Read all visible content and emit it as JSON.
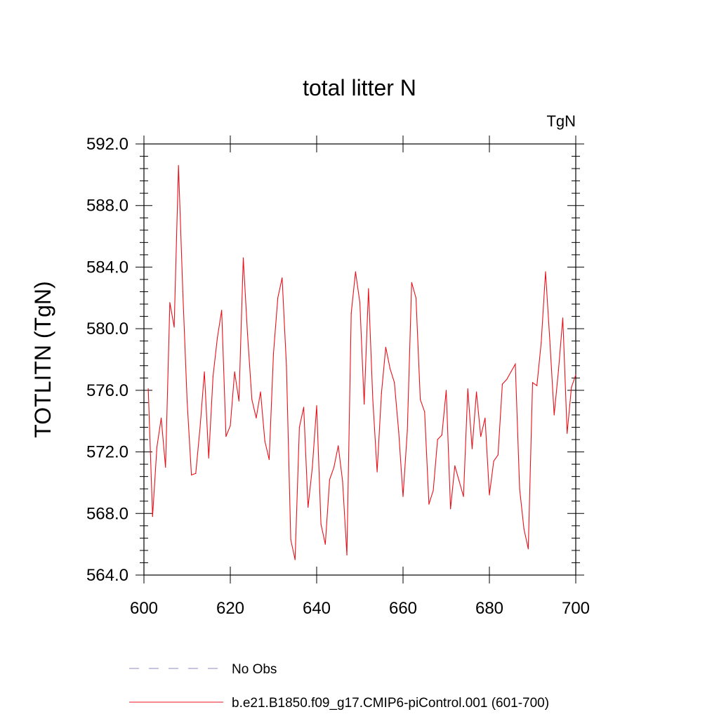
{
  "chart_data": {
    "type": "line",
    "title": "total litter N",
    "units_label": "TgN",
    "ylabel": "TOTLITN  (TgN)",
    "xlabel": "",
    "xlim": [
      600,
      700
    ],
    "ylim": [
      564,
      592
    ],
    "x_ticks": [
      600,
      620,
      640,
      660,
      680,
      700
    ],
    "y_ticks": [
      "564.0",
      "568.0",
      "572.0",
      "576.0",
      "580.0",
      "584.0",
      "588.0",
      "592.0"
    ],
    "grid": false,
    "legend_position": "bottom-left",
    "legend": [
      {
        "label": "No Obs",
        "style": "dashed",
        "color": "#8a88c8"
      },
      {
        "label": "b.e21.B1850.f09_g17.CMIP6-piControl.001 (601-700)",
        "style": "solid",
        "color": "#e8101a"
      }
    ],
    "series": [
      {
        "name": "b.e21.B1850.f09_g17.CMIP6-piControl.001 (601-700)",
        "color": "#e8101a",
        "x": [
          601,
          602,
          603,
          604,
          605,
          606,
          607,
          608,
          609,
          610,
          611,
          612,
          613,
          614,
          615,
          616,
          617,
          618,
          619,
          620,
          621,
          622,
          623,
          624,
          625,
          626,
          627,
          628,
          629,
          630,
          631,
          632,
          633,
          634,
          635,
          636,
          637,
          638,
          639,
          640,
          641,
          642,
          643,
          644,
          645,
          646,
          647,
          648,
          649,
          650,
          651,
          652,
          653,
          654,
          655,
          656,
          657,
          658,
          659,
          660,
          661,
          662,
          663,
          664,
          665,
          666,
          667,
          668,
          669,
          670,
          671,
          672,
          673,
          674,
          675,
          676,
          677,
          678,
          679,
          680,
          681,
          682,
          683,
          684,
          685,
          686,
          687,
          688,
          689,
          690,
          691,
          692,
          693,
          694,
          695,
          696,
          697,
          698,
          699,
          700
        ],
        "values": [
          576.1,
          567.8,
          572.3,
          574.2,
          571.0,
          581.7,
          580.1,
          590.6,
          582.4,
          575.3,
          570.5,
          570.6,
          573.6,
          577.2,
          571.6,
          576.9,
          579.4,
          581.2,
          573.0,
          573.7,
          577.2,
          575.3,
          584.6,
          579.6,
          575.4,
          574.2,
          575.9,
          572.7,
          571.5,
          578.4,
          582.0,
          583.3,
          577.6,
          566.3,
          565.0,
          573.6,
          574.9,
          568.4,
          571.0,
          575.0,
          567.3,
          566.0,
          570.2,
          571.0,
          572.4,
          570.1,
          565.3,
          581.0,
          583.7,
          581.7,
          575.1,
          582.6,
          575.4,
          570.7,
          575.8,
          578.8,
          577.4,
          576.5,
          573.3,
          569.1,
          573.4,
          583.0,
          582.0,
          575.4,
          574.6,
          568.6,
          569.5,
          572.8,
          573.1,
          576.0,
          568.3,
          571.1,
          570.1,
          569.1,
          576.1,
          572.2,
          575.9,
          573.0,
          574.2,
          569.2,
          571.4,
          571.8,
          576.4,
          576.7,
          577.2,
          577.7,
          569.6,
          567.0,
          565.7,
          576.5,
          576.3,
          579.1,
          583.7,
          579.2,
          574.4,
          577.3,
          580.7,
          573.2,
          576.2,
          577.0
        ]
      }
    ]
  }
}
